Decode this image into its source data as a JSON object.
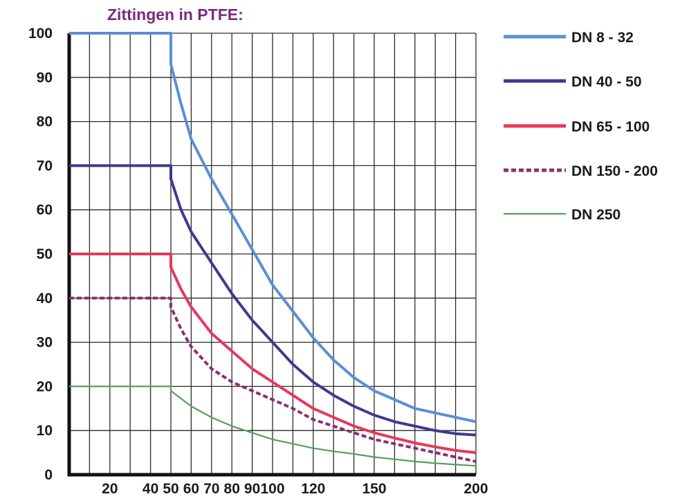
{
  "chart_data": {
    "type": "line",
    "title": "Zittingen in PTFE:",
    "xlabel": "",
    "ylabel": "",
    "x_ticks": [
      20,
      40,
      50,
      60,
      70,
      80,
      90,
      100,
      120,
      150,
      200
    ],
    "x_grid": [
      0,
      10,
      20,
      30,
      40,
      50,
      60,
      70,
      80,
      90,
      100,
      110,
      120,
      130,
      140,
      150,
      160,
      170,
      180,
      190,
      200
    ],
    "y_ticks": [
      0,
      10,
      20,
      30,
      40,
      50,
      60,
      70,
      80,
      90,
      100
    ],
    "ylim": [
      0,
      100
    ],
    "grid": true,
    "legend_position": "right",
    "series": [
      {
        "name": "DN 8 - 32",
        "color": "#5b8fd6",
        "style": "solid",
        "points": [
          [
            0,
            100
          ],
          [
            50,
            100
          ],
          [
            50,
            93
          ],
          [
            55,
            84
          ],
          [
            60,
            76
          ],
          [
            70,
            67
          ],
          [
            80,
            59
          ],
          [
            90,
            51
          ],
          [
            100,
            43
          ],
          [
            110,
            37
          ],
          [
            120,
            31
          ],
          [
            130,
            26
          ],
          [
            140,
            22
          ],
          [
            150,
            19
          ],
          [
            160,
            17
          ],
          [
            170,
            15
          ],
          [
            180,
            14
          ],
          [
            190,
            13
          ],
          [
            200,
            12
          ]
        ]
      },
      {
        "name": "DN 40 - 50",
        "color": "#3d3a8e",
        "style": "solid",
        "points": [
          [
            0,
            70
          ],
          [
            50,
            70
          ],
          [
            50,
            67
          ],
          [
            55,
            60
          ],
          [
            60,
            55
          ],
          [
            70,
            48
          ],
          [
            80,
            41
          ],
          [
            90,
            35
          ],
          [
            100,
            30
          ],
          [
            110,
            25
          ],
          [
            120,
            21
          ],
          [
            130,
            18
          ],
          [
            140,
            15.5
          ],
          [
            150,
            13.5
          ],
          [
            160,
            12
          ],
          [
            170,
            11
          ],
          [
            180,
            10
          ],
          [
            190,
            9.3
          ],
          [
            200,
            9
          ]
        ]
      },
      {
        "name": "DN 65 - 100",
        "color": "#e8385a",
        "style": "solid",
        "points": [
          [
            0,
            50
          ],
          [
            50,
            50
          ],
          [
            50,
            47
          ],
          [
            55,
            42
          ],
          [
            60,
            38
          ],
          [
            70,
            32
          ],
          [
            80,
            28
          ],
          [
            90,
            24
          ],
          [
            100,
            21
          ],
          [
            110,
            18
          ],
          [
            120,
            15
          ],
          [
            130,
            13
          ],
          [
            140,
            11
          ],
          [
            150,
            9.5
          ],
          [
            160,
            8.3
          ],
          [
            170,
            7.2
          ],
          [
            180,
            6.3
          ],
          [
            190,
            5.5
          ],
          [
            200,
            5
          ]
        ]
      },
      {
        "name": "DN 150 - 200",
        "color": "#8c2f6e",
        "style": "dashed",
        "points": [
          [
            0,
            40
          ],
          [
            50,
            40
          ],
          [
            50,
            38
          ],
          [
            55,
            33
          ],
          [
            60,
            29
          ],
          [
            70,
            24
          ],
          [
            80,
            21
          ],
          [
            90,
            19
          ],
          [
            100,
            17
          ],
          [
            110,
            15
          ],
          [
            120,
            12.5
          ],
          [
            130,
            11
          ],
          [
            140,
            9.5
          ],
          [
            150,
            8
          ],
          [
            160,
            7
          ],
          [
            170,
            6
          ],
          [
            180,
            5
          ],
          [
            190,
            4
          ],
          [
            200,
            3
          ]
        ]
      },
      {
        "name": "DN 250",
        "color": "#55a05a",
        "style": "solid",
        "points": [
          [
            0,
            20
          ],
          [
            50,
            20
          ],
          [
            50,
            19
          ],
          [
            60,
            15.5
          ],
          [
            70,
            13
          ],
          [
            80,
            11
          ],
          [
            90,
            9.5
          ],
          [
            100,
            8
          ],
          [
            110,
            7
          ],
          [
            120,
            6
          ],
          [
            130,
            5.3
          ],
          [
            140,
            4.7
          ],
          [
            150,
            4
          ],
          [
            160,
            3.5
          ],
          [
            170,
            3
          ],
          [
            180,
            2.6
          ],
          [
            190,
            2.3
          ],
          [
            200,
            2
          ]
        ]
      }
    ],
    "colors": {
      "title": "#7b2a7e",
      "grid": "#2a2a2a",
      "axis": "#111111"
    }
  }
}
